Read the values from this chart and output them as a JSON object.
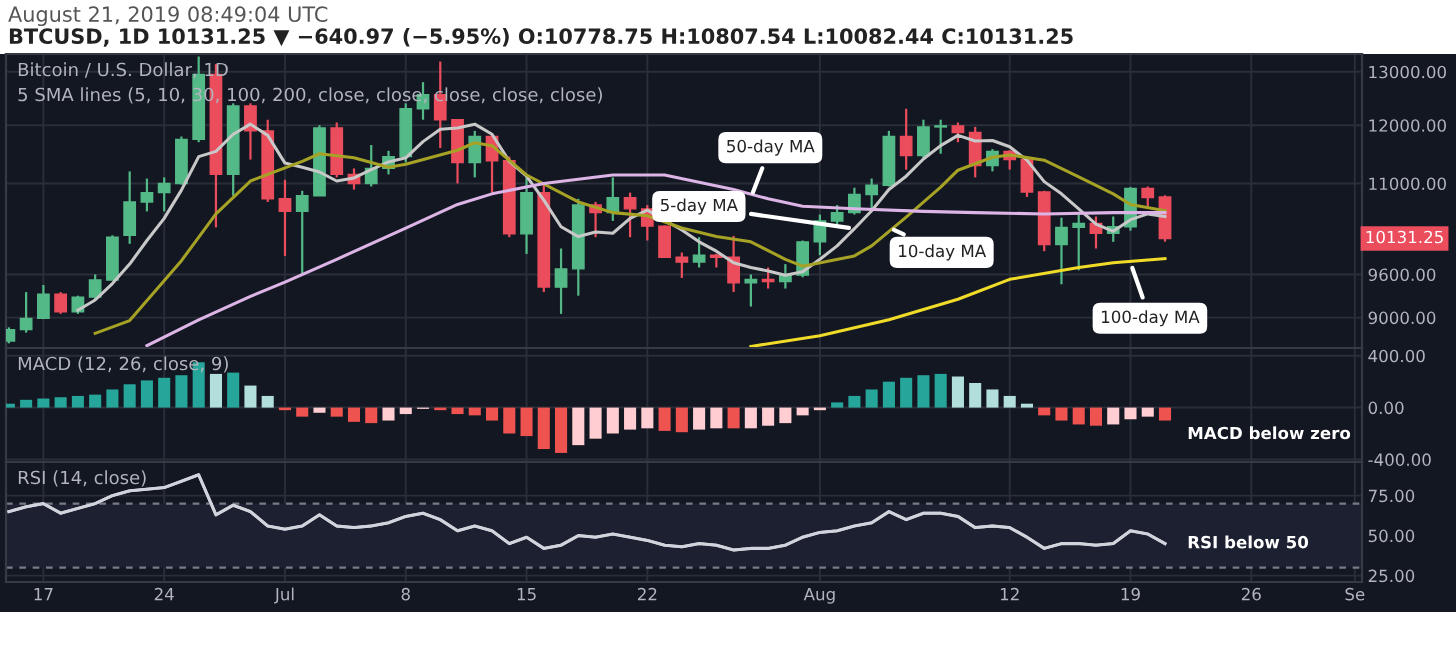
{
  "chart_data": [
    {
      "type": "candlestick",
      "title": "August 21, 2019 08:49:04 UTC",
      "subtitle": "BTCUSD, 1D 10131.25 ▼ −640.97 (−5.95%) O:10778.75 H:10807.54 L:10082.44 C:10131.25",
      "x": [
        "2019-06-15",
        "2019-06-16",
        "2019-06-17",
        "2019-06-18",
        "2019-06-19",
        "2019-06-20",
        "2019-06-21",
        "2019-06-22",
        "2019-06-23",
        "2019-06-24",
        "2019-06-25",
        "2019-06-26",
        "2019-06-27",
        "2019-06-28",
        "2019-06-29",
        "2019-06-30",
        "2019-07-01",
        "2019-07-02",
        "2019-07-03",
        "2019-07-04",
        "2019-07-05",
        "2019-07-06",
        "2019-07-07",
        "2019-07-08",
        "2019-07-09",
        "2019-07-10",
        "2019-07-11",
        "2019-07-12",
        "2019-07-13",
        "2019-07-14",
        "2019-07-15",
        "2019-07-16",
        "2019-07-17",
        "2019-07-18",
        "2019-07-19",
        "2019-07-20",
        "2019-07-21",
        "2019-07-22",
        "2019-07-23",
        "2019-07-24",
        "2019-07-25",
        "2019-07-26",
        "2019-07-27",
        "2019-07-28",
        "2019-07-29",
        "2019-07-30",
        "2019-07-31",
        "2019-08-01",
        "2019-08-02",
        "2019-08-03",
        "2019-08-04",
        "2019-08-05",
        "2019-08-06",
        "2019-08-07",
        "2019-08-08",
        "2019-08-09",
        "2019-08-10",
        "2019-08-11",
        "2019-08-12",
        "2019-08-13",
        "2019-08-14",
        "2019-08-15",
        "2019-08-16",
        "2019-08-17",
        "2019-08-18",
        "2019-08-19",
        "2019-08-20",
        "2019-08-21"
      ],
      "ohlc": [
        [
          8690,
          8870,
          8660,
          8840
        ],
        [
          8840,
          9350,
          8800,
          8990
        ],
        [
          8990,
          9450,
          8980,
          9320
        ],
        [
          9320,
          9350,
          9050,
          9080
        ],
        [
          9080,
          9300,
          9050,
          9280
        ],
        [
          9280,
          9600,
          9250,
          9520
        ],
        [
          9520,
          10180,
          9520,
          10150
        ],
        [
          10180,
          11200,
          10050,
          10700
        ],
        [
          10700,
          11080,
          10550,
          10850
        ],
        [
          10850,
          11100,
          10550,
          11000
        ],
        [
          11000,
          11800,
          10980,
          11750
        ],
        [
          11750,
          13300,
          11700,
          12950
        ],
        [
          12950,
          13150,
          10300,
          11150
        ],
        [
          11150,
          12400,
          10800,
          12350
        ],
        [
          12350,
          12400,
          11400,
          11900
        ],
        [
          11900,
          12100,
          10700,
          10750
        ],
        [
          10750,
          11060,
          9870,
          10550
        ],
        [
          10550,
          10880,
          9600,
          10800
        ],
        [
          10800,
          12000,
          10800,
          11950
        ],
        [
          11950,
          12050,
          11100,
          11150
        ],
        [
          11150,
          11250,
          10900,
          11000
        ],
        [
          11000,
          11650,
          10950,
          11250
        ],
        [
          11250,
          11550,
          11150,
          11450
        ],
        [
          11450,
          12400,
          11350,
          12300
        ],
        [
          12300,
          12800,
          12100,
          12560
        ],
        [
          12560,
          13200,
          11600,
          12100
        ],
        [
          12100,
          12100,
          11000,
          11350
        ],
        [
          11350,
          11900,
          11100,
          11800
        ],
        [
          11800,
          11850,
          10850,
          11380
        ],
        [
          11380,
          11450,
          10150,
          10200
        ],
        [
          10200,
          11100,
          9900,
          10850
        ],
        [
          10850,
          11000,
          9350,
          9420
        ],
        [
          9420,
          9980,
          9050,
          9680
        ],
        [
          9680,
          10750,
          9300,
          10650
        ],
        [
          10650,
          10700,
          10150,
          10530
        ],
        [
          10530,
          11100,
          10400,
          10770
        ],
        [
          10770,
          10850,
          10150,
          10590
        ],
        [
          10590,
          10650,
          10100,
          10320
        ],
        [
          10320,
          10330,
          9850,
          9850
        ],
        [
          9850,
          9920,
          9550,
          9780
        ],
        [
          9780,
          10150,
          9700,
          9880
        ],
        [
          9880,
          9900,
          9700,
          9850
        ],
        [
          9850,
          10170,
          9350,
          9480
        ],
        [
          9480,
          9600,
          9150,
          9530
        ],
        [
          9530,
          9700,
          9400,
          9500
        ],
        [
          9500,
          9750,
          9400,
          9590
        ],
        [
          9590,
          10100,
          9560,
          10080
        ],
        [
          10080,
          10500,
          9880,
          10400
        ],
        [
          10400,
          10650,
          10350,
          10530
        ],
        [
          10530,
          10930,
          10500,
          10820
        ],
        [
          10820,
          11080,
          10560,
          10970
        ],
        [
          10970,
          11900,
          10950,
          11800
        ],
        [
          11800,
          12300,
          11230,
          11470
        ],
        [
          11470,
          12100,
          11400,
          11970
        ],
        [
          11970,
          12100,
          11500,
          11990
        ],
        [
          11990,
          12050,
          11700,
          11870
        ],
        [
          11870,
          11970,
          11100,
          11300
        ],
        [
          11300,
          11580,
          11200,
          11540
        ],
        [
          11540,
          11560,
          11230,
          11400
        ],
        [
          11400,
          11450,
          10780,
          10860
        ],
        [
          10860,
          10880,
          9940,
          10040
        ],
        [
          10040,
          10450,
          9460,
          10300
        ],
        [
          10300,
          10500,
          9660,
          10360
        ],
        [
          10360,
          10470,
          9980,
          10210
        ],
        [
          10210,
          10470,
          10080,
          10310
        ],
        [
          10310,
          10940,
          10250,
          10920
        ],
        [
          10920,
          10950,
          10600,
          10771
        ],
        [
          10778.75,
          10807.54,
          10082.44,
          10131.25
        ]
      ],
      "colors": [
        "#53b987",
        "#53b987",
        "#53b987",
        "#eb4d5c",
        "#53b987",
        "#53b987",
        "#53b987",
        "#53b987",
        "#53b987",
        "#53b987",
        "#53b987",
        "#53b987",
        "#eb4d5c",
        "#53b987",
        "#eb4d5c",
        "#eb4d5c",
        "#eb4d5c",
        "#53b987",
        "#53b987",
        "#eb4d5c",
        "#eb4d5c",
        "#53b987",
        "#53b987",
        "#53b987",
        "#53b987",
        "#eb4d5c",
        "#eb4d5c",
        "#53b987",
        "#eb4d5c",
        "#eb4d5c",
        "#53b987",
        "#eb4d5c",
        "#53b987",
        "#53b987",
        "#eb4d5c",
        "#53b987",
        "#eb4d5c",
        "#eb4d5c",
        "#eb4d5c",
        "#eb4d5c",
        "#53b987",
        "#eb4d5c",
        "#eb4d5c",
        "#53b987",
        "#eb4d5c",
        "#53b987",
        "#53b987",
        "#53b987",
        "#53b987",
        "#53b987",
        "#53b987",
        "#53b987",
        "#eb4d5c",
        "#53b987",
        "#53b987",
        "#eb4d5c",
        "#eb4d5c",
        "#53b987",
        "#eb4d5c",
        "#eb4d5c",
        "#eb4d5c",
        "#53b987",
        "#53b987",
        "#eb4d5c",
        "#53b987",
        "#53b987",
        "#eb4d5c",
        "#eb4d5c"
      ],
      "series": [
        {
          "type": "line",
          "color": "#c8c8c8",
          "values": [
            null,
            null,
            null,
            null,
            9100,
            9240,
            9470,
            9750,
            10100,
            10440,
            10890,
            11450,
            11540,
            11840,
            12020,
            11820,
            11340,
            11270,
            11190,
            11040,
            11090,
            11230,
            11360,
            11430,
            11710,
            11930,
            11950,
            12020,
            11840,
            11370,
            11120,
            10730,
            10310,
            10160,
            10230,
            10210,
            10440,
            10570,
            10410,
            10260,
            10080,
            9940,
            9770,
            9700,
            9650,
            9590,
            9640,
            9820,
            10020,
            10280,
            10560,
            10900,
            11120,
            11410,
            11640,
            11820,
            11720,
            11730,
            11620,
            11390,
            11030,
            10830,
            10590,
            10350,
            10240,
            10420,
            10510,
            10470
          ]
        },
        {
          "type": "line",
          "color": "#a5a225",
          "x": [
            "2019-06-20",
            "2019-06-22",
            "2019-06-25",
            "2019-06-27",
            "2019-06-29",
            "2019-07-01",
            "2019-07-02",
            "2019-07-03",
            "2019-07-05",
            "2019-07-07",
            "2019-07-08",
            "2019-07-11",
            "2019-07-12",
            "2019-07-13",
            "2019-07-15",
            "2019-07-18",
            "2019-07-20",
            "2019-07-22",
            "2019-07-24",
            "2019-07-26",
            "2019-07-28",
            "2019-07-30",
            "2019-07-31",
            "2019-08-03",
            "2019-08-04",
            "2019-08-06",
            "2019-08-08",
            "2019-08-09",
            "2019-08-11",
            "2019-08-12",
            "2019-08-14",
            "2019-08-16",
            "2019-08-18",
            "2019-08-19",
            "2019-08-21"
          ],
          "values": [
            8790,
            8960,
            9800,
            10510,
            11040,
            11260,
            11370,
            11500,
            11430,
            11270,
            11320,
            11560,
            11690,
            11640,
            11140,
            10700,
            10530,
            10480,
            10290,
            10160,
            10080,
            9820,
            9720,
            9870,
            10020,
            10460,
            10940,
            11220,
            11440,
            11480,
            11390,
            11110,
            10830,
            10660,
            10560
          ]
        },
        {
          "type": "line",
          "color": "#dcb4e6",
          "x": [
            "2019-06-23",
            "2019-06-26",
            "2019-06-29",
            "2019-07-01",
            "2019-07-04",
            "2019-07-08",
            "2019-07-11",
            "2019-07-13",
            "2019-07-16",
            "2019-07-20",
            "2019-07-23",
            "2019-07-27",
            "2019-07-29",
            "2019-07-31",
            "2019-08-03",
            "2019-08-07",
            "2019-08-10",
            "2019-08-14",
            "2019-08-18",
            "2019-08-21"
          ],
          "values": [
            8630,
            8970,
            9290,
            9490,
            9820,
            10290,
            10660,
            10830,
            11000,
            11140,
            11140,
            10900,
            10750,
            10630,
            10590,
            10550,
            10530,
            10510,
            10530,
            10530
          ]
        },
        {
          "type": "line",
          "color": "#f0dc28",
          "x": [
            "2019-07-28",
            "2019-08-01",
            "2019-08-05",
            "2019-08-09",
            "2019-08-12",
            "2019-08-16",
            "2019-08-18",
            "2019-08-21"
          ],
          "values": [
            8620,
            8760,
            8970,
            9250,
            9530,
            9700,
            9770,
            9830
          ]
        }
      ],
      "xlim": [
        "2019-06-14T20:00",
        "2019-09-01T10:00"
      ],
      "xticks": [
        {
          "value": "2019-06-17",
          "label": null
        },
        {
          "value": "2019-06-24",
          "label": null
        },
        {
          "value": "2019-07-01",
          "label": null
        },
        {
          "value": "2019-07-08",
          "label": null
        },
        {
          "value": "2019-07-15",
          "label": null
        },
        {
          "value": "2019-07-22",
          "label": null
        },
        {
          "value": "2019-08-01",
          "label": null
        },
        {
          "value": "2019-08-12",
          "label": null
        },
        {
          "value": "2019-08-19",
          "label": null
        },
        {
          "value": "2019-08-26",
          "label": null
        },
        {
          "value": "2019-09-01",
          "label": null
        }
      ],
      "log": true,
      "ylim": [
        8600,
        13350
      ],
      "yticks": [
        {
          "value": 9000,
          "label": "9000.00"
        },
        {
          "value": 9600,
          "label": "9600.00"
        },
        {
          "value": 11000,
          "label": "11000.00"
        },
        {
          "value": 12000,
          "label": "12000.00"
        },
        {
          "value": 13000,
          "label": "13000.00"
        }
      ],
      "grid": true,
      "tick_labels": "y",
      "annotations": [
        "Bitcoin / U.S. Dollar, 1D",
        "5 SMA lines (5, 10, 30, 100, 200, close, close, close, close, close)",
        {
          "text": "50-day MA",
          "x": "2019-07-28",
          "y": 10770
        },
        {
          "text": "5-day MA",
          "x": "2019-08-03",
          "y": 10280
        },
        {
          "text": "10-day MA",
          "x": "2019-08-05",
          "y": 10300
        },
        {
          "text": "100-day MA",
          "x": "2019-08-19",
          "y": 9770
        },
        "10131.25"
      ]
    },
    {
      "type": "bar",
      "title": "MACD (12, 26, close, 9)",
      "x": [
        "2019-06-15",
        "2019-06-16",
        "2019-06-17",
        "2019-06-18",
        "2019-06-19",
        "2019-06-20",
        "2019-06-21",
        "2019-06-22",
        "2019-06-23",
        "2019-06-24",
        "2019-06-25",
        "2019-06-26",
        "2019-06-27",
        "2019-06-28",
        "2019-06-29",
        "2019-06-30",
        "2019-07-01",
        "2019-07-02",
        "2019-07-03",
        "2019-07-04",
        "2019-07-05",
        "2019-07-06",
        "2019-07-07",
        "2019-07-08",
        "2019-07-09",
        "2019-07-10",
        "2019-07-11",
        "2019-07-12",
        "2019-07-13",
        "2019-07-14",
        "2019-07-15",
        "2019-07-16",
        "2019-07-17",
        "2019-07-18",
        "2019-07-19",
        "2019-07-20",
        "2019-07-21",
        "2019-07-22",
        "2019-07-23",
        "2019-07-24",
        "2019-07-25",
        "2019-07-26",
        "2019-07-27",
        "2019-07-28",
        "2019-07-29",
        "2019-07-30",
        "2019-07-31",
        "2019-08-01",
        "2019-08-02",
        "2019-08-03",
        "2019-08-04",
        "2019-08-05",
        "2019-08-06",
        "2019-08-07",
        "2019-08-08",
        "2019-08-09",
        "2019-08-10",
        "2019-08-11",
        "2019-08-12",
        "2019-08-13",
        "2019-08-14",
        "2019-08-15",
        "2019-08-16",
        "2019-08-17",
        "2019-08-18",
        "2019-08-19",
        "2019-08-20",
        "2019-08-21"
      ],
      "values": [
        30,
        60,
        70,
        80,
        90,
        100,
        140,
        180,
        210,
        230,
        250,
        350,
        260,
        270,
        170,
        90,
        -20,
        -70,
        -40,
        -70,
        -110,
        -120,
        -100,
        -50,
        -10,
        -20,
        -50,
        -60,
        -100,
        -200,
        -220,
        -320,
        -350,
        -290,
        -240,
        -200,
        -170,
        -160,
        -180,
        -190,
        -170,
        -160,
        -160,
        -160,
        -140,
        -120,
        -60,
        -20,
        40,
        90,
        140,
        200,
        230,
        250,
        260,
        240,
        190,
        140,
        90,
        30,
        -60,
        -100,
        -130,
        -140,
        -130,
        -90,
        -70,
        -100
      ],
      "colors": [
        "#26a69a",
        "#26a69a",
        "#26a69a",
        "#26a69a",
        "#26a69a",
        "#26a69a",
        "#26a69a",
        "#26a69a",
        "#26a69a",
        "#26a69a",
        "#26a69a",
        "#26a69a",
        "#b2dfdb",
        "#26a69a",
        "#b2dfdb",
        "#b2dfdb",
        "#ef5350",
        "#ef5350",
        "#ffcdd2",
        "#ef5350",
        "#ef5350",
        "#ef5350",
        "#ffcdd2",
        "#ffcdd2",
        "#ffcdd2",
        "#ef5350",
        "#ef5350",
        "#ef5350",
        "#ef5350",
        "#ef5350",
        "#ef5350",
        "#ef5350",
        "#ef5350",
        "#ffcdd2",
        "#ffcdd2",
        "#ffcdd2",
        "#ffcdd2",
        "#ffcdd2",
        "#ef5350",
        "#ef5350",
        "#ffcdd2",
        "#ffcdd2",
        "#ef5350",
        "#ffcdd2",
        "#ffcdd2",
        "#ffcdd2",
        "#ffcdd2",
        "#ffcdd2",
        "#26a69a",
        "#26a69a",
        "#26a69a",
        "#26a69a",
        "#26a69a",
        "#26a69a",
        "#26a69a",
        "#b2dfdb",
        "#b2dfdb",
        "#b2dfdb",
        "#b2dfdb",
        "#b2dfdb",
        "#ef5350",
        "#ef5350",
        "#ef5350",
        "#ef5350",
        "#ffcdd2",
        "#ffcdd2",
        "#ffcdd2",
        "#ef5350"
      ],
      "xlim": [
        "2019-06-14T20:00",
        "2019-09-01T10:00"
      ],
      "xticks": [
        {
          "value": "2019-06-17",
          "label": null
        },
        {
          "value": "2019-06-24",
          "label": null
        },
        {
          "value": "2019-07-01",
          "label": null
        },
        {
          "value": "2019-07-08",
          "label": null
        },
        {
          "value": "2019-07-15",
          "label": null
        },
        {
          "value": "2019-07-22",
          "label": null
        },
        {
          "value": "2019-08-01",
          "label": null
        },
        {
          "value": "2019-08-12",
          "label": null
        },
        {
          "value": "2019-08-19",
          "label": null
        },
        {
          "value": "2019-08-26",
          "label": null
        },
        {
          "value": "2019-09-01",
          "label": null
        }
      ],
      "ylim": [
        -420,
        460
      ],
      "yticks": [
        {
          "value": -400,
          "label": "-400.00"
        },
        {
          "value": 0,
          "label": "0.00"
        },
        {
          "value": 400,
          "label": "400.00"
        }
      ],
      "grid": true,
      "tick_labels": "y",
      "annotations": [
        {
          "text": "MACD below zero",
          "x": "2019-08-21",
          "y": -100
        }
      ]
    },
    {
      "type": "line",
      "title": "RSI (14, close)",
      "x": [
        "2019-06-15",
        "2019-06-16",
        "2019-06-17",
        "2019-06-18",
        "2019-06-19",
        "2019-06-20",
        "2019-06-21",
        "2019-06-22",
        "2019-06-23",
        "2019-06-24",
        "2019-06-25",
        "2019-06-26",
        "2019-06-27",
        "2019-06-28",
        "2019-06-29",
        "2019-06-30",
        "2019-07-01",
        "2019-07-02",
        "2019-07-03",
        "2019-07-04",
        "2019-07-05",
        "2019-07-06",
        "2019-07-07",
        "2019-07-08",
        "2019-07-09",
        "2019-07-10",
        "2019-07-11",
        "2019-07-12",
        "2019-07-13",
        "2019-07-14",
        "2019-07-15",
        "2019-07-16",
        "2019-07-17",
        "2019-07-18",
        "2019-07-19",
        "2019-07-20",
        "2019-07-21",
        "2019-07-22",
        "2019-07-23",
        "2019-07-24",
        "2019-07-25",
        "2019-07-26",
        "2019-07-27",
        "2019-07-28",
        "2019-07-29",
        "2019-07-30",
        "2019-07-31",
        "2019-08-01",
        "2019-08-02",
        "2019-08-03",
        "2019-08-04",
        "2019-08-05",
        "2019-08-06",
        "2019-08-07",
        "2019-08-08",
        "2019-08-09",
        "2019-08-10",
        "2019-08-11",
        "2019-08-12",
        "2019-08-13",
        "2019-08-14",
        "2019-08-15",
        "2019-08-16",
        "2019-08-17",
        "2019-08-18",
        "2019-08-19",
        "2019-08-20",
        "2019-08-21"
      ],
      "series": [
        {
          "color": "#d1d4dc",
          "values": [
            65,
            68,
            70,
            64,
            67,
            70,
            75,
            78,
            79,
            80,
            84,
            88,
            63,
            69,
            65,
            56,
            54,
            56,
            63,
            56,
            55,
            56,
            58,
            62,
            64,
            60,
            53,
            56,
            53,
            45,
            49,
            42,
            44,
            50,
            49,
            51,
            49,
            47,
            44,
            43,
            45,
            44,
            41,
            42,
            42,
            44,
            49,
            52,
            53,
            56,
            58,
            65,
            60,
            64,
            64,
            62,
            55,
            56,
            55,
            49,
            42,
            45,
            45,
            44,
            45,
            53,
            51,
            45
          ]
        }
      ],
      "xlim": [
        "2019-06-14T20:00",
        "2019-09-01T10:00"
      ],
      "xticks": [
        {
          "value": "2019-06-17",
          "label": "17"
        },
        {
          "value": "2019-06-24",
          "label": "24"
        },
        {
          "value": "2019-07-01",
          "label": "Jul"
        },
        {
          "value": "2019-07-08",
          "label": "8"
        },
        {
          "value": "2019-07-15",
          "label": "15"
        },
        {
          "value": "2019-07-22",
          "label": "22"
        },
        {
          "value": "2019-08-01",
          "label": "Aug"
        },
        {
          "value": "2019-08-12",
          "label": "12"
        },
        {
          "value": "2019-08-19",
          "label": "19"
        },
        {
          "value": "2019-08-26",
          "label": "26"
        },
        {
          "value": "2019-09-01",
          "label": "Se"
        }
      ],
      "ylim": [
        21,
        96
      ],
      "yticks": [
        {
          "value": 25,
          "label": "25.00"
        },
        {
          "value": 50,
          "label": "50.00"
        },
        {
          "value": 75,
          "label": "75.00"
        }
      ],
      "grid": true,
      "ref_lines": [
        {
          "axis": "y",
          "value": 70,
          "color": "#787b86",
          "line_style": "dashed"
        },
        {
          "axis": "y",
          "value": 30,
          "color": "#787b86",
          "line_style": "dashed"
        }
      ],
      "bands": [
        {
          "axis": "y",
          "from": 30,
          "to": 70,
          "color": "#1c2030"
        }
      ],
      "annotations": [
        {
          "text": "RSI below 50",
          "x": "2019-08-21",
          "y": 45
        }
      ]
    }
  ]
}
